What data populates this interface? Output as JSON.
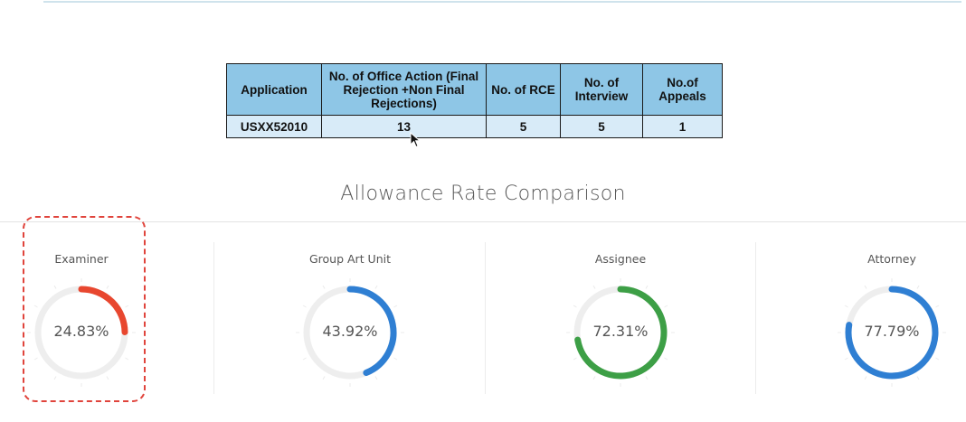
{
  "table": {
    "headers": [
      "Application",
      "No. of Office Action (Final Rejection +Non Final Rejections)",
      "No. of RCE",
      "No. of Interview",
      "No.of Appeals"
    ],
    "row": [
      "USXX52010",
      "13",
      "5",
      "5",
      "1"
    ]
  },
  "section": {
    "title": "Allowance Rate Comparison"
  },
  "gauges": [
    {
      "label": "Examiner",
      "percent": 24.83,
      "value_text": "24.83%",
      "color": "#e8472f"
    },
    {
      "label": "Group Art Unit",
      "percent": 43.92,
      "value_text": "43.92%",
      "color": "#2f7fd3"
    },
    {
      "label": "Assignee",
      "percent": 72.31,
      "value_text": "72.31%",
      "color": "#3d9f46"
    },
    {
      "label": "Attorney",
      "percent": 77.79,
      "value_text": "77.79%",
      "color": "#2f7fd3"
    }
  ],
  "colors": {
    "table_header_bg": "#8ec6e6",
    "table_cell_bg": "#d8ebf8",
    "gauge_track": "#eeeeee",
    "highlight": "#e0443c"
  },
  "icons": {
    "cursor": "mouse-pointer-icon"
  }
}
